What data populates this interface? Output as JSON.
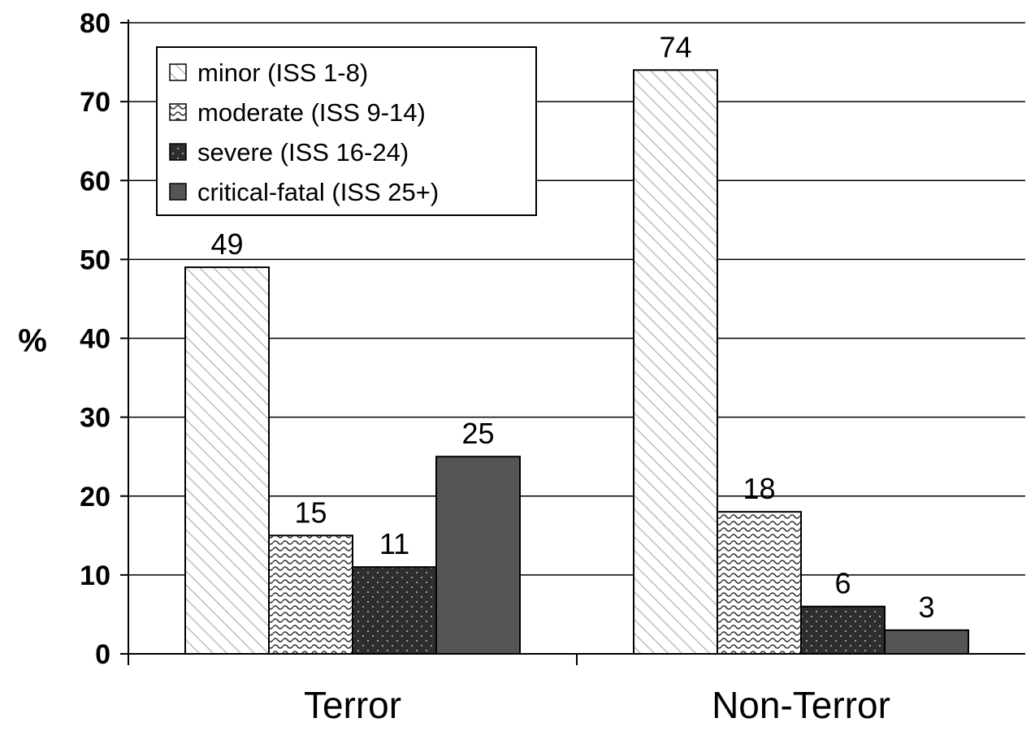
{
  "chart_data": {
    "type": "bar",
    "title": "",
    "xlabel": "",
    "ylabel": "%",
    "ylim": [
      0,
      80
    ],
    "ytick_step": 10,
    "categories": [
      "Terror",
      "Non-Terror"
    ],
    "series": [
      {
        "name": "minor (ISS 1-8)",
        "values": [
          49,
          74
        ],
        "pattern": "diagonal",
        "color": "#ffffff"
      },
      {
        "name": "moderate (ISS 9-14)",
        "values": [
          15,
          18
        ],
        "pattern": "wave",
        "color": "#ffffff"
      },
      {
        "name": "severe (ISS 16-24)",
        "values": [
          11,
          6
        ],
        "pattern": "dots",
        "color": "#2e2e2e"
      },
      {
        "name": "critical-fatal (ISS 25+)",
        "values": [
          25,
          3
        ],
        "pattern": "solid",
        "color": "#555555"
      }
    ],
    "data_labels": [
      [
        "49",
        "15",
        "11",
        "25"
      ],
      [
        "74",
        "18",
        "6",
        "3"
      ]
    ],
    "grid": true,
    "legend_position": "top-left"
  }
}
